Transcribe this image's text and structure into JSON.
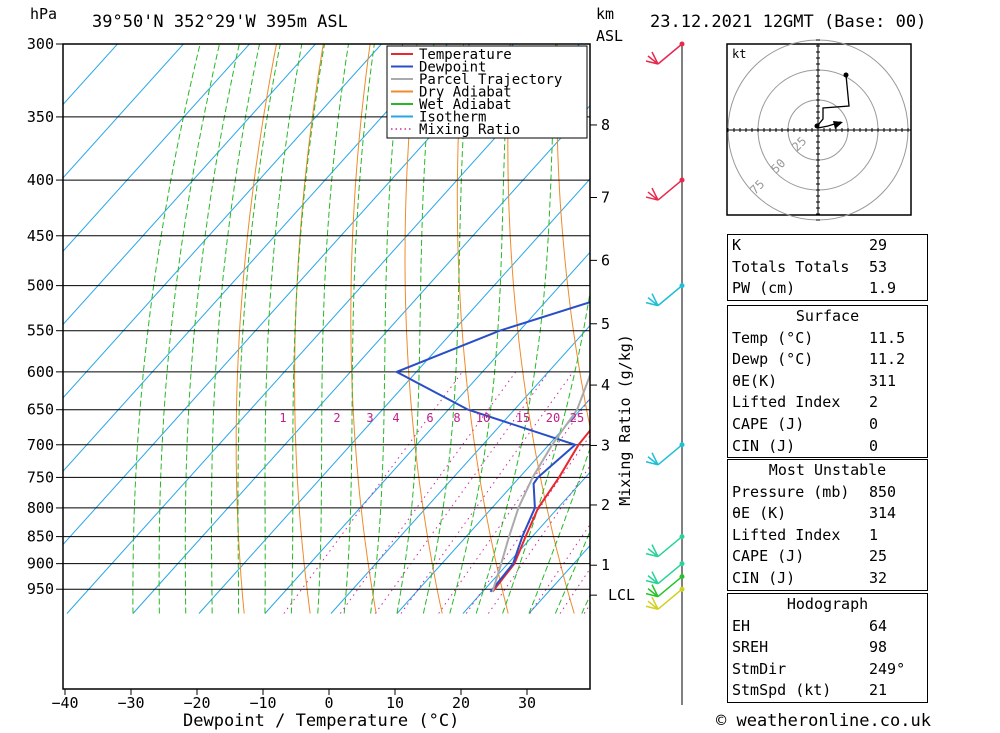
{
  "header": {
    "hpa_unit": "hPa",
    "location": "39°50'N  352°29'W  395m  ASL",
    "km_unit": "km",
    "asl_unit": "ASL",
    "datetime": "23.12.2021  12GMT  (Base: 00)"
  },
  "chart_data": {
    "type": "line",
    "title": "",
    "xlabel": "Dewpoint / Temperature (°C)",
    "ylabel": "hPa",
    "xlim": [
      -40,
      40
    ],
    "ylim": [
      960,
      300
    ],
    "x_ticks": [
      -40,
      -30,
      -20,
      -10,
      0,
      10,
      20,
      30
    ],
    "pressure_levels": [
      300,
      350,
      400,
      450,
      500,
      550,
      600,
      650,
      700,
      750,
      800,
      850,
      900,
      950
    ],
    "height_ticks_km": [
      {
        "label": "8",
        "p": 356
      },
      {
        "label": "7",
        "p": 415
      },
      {
        "label": "6",
        "p": 474
      },
      {
        "label": "5",
        "p": 542
      },
      {
        "label": "4",
        "p": 617
      },
      {
        "label": "3",
        "p": 701
      },
      {
        "label": "2",
        "p": 795
      },
      {
        "label": "1",
        "p": 903
      },
      {
        "label": "LCL",
        "p": 962
      }
    ],
    "mixing_ratio_axis_label": "Mixing Ratio (g/kg)",
    "mixing_ratio_labels": [
      "1",
      "2",
      "3",
      "4",
      "6",
      "8",
      "10",
      "15",
      "20",
      "25"
    ],
    "mixing_ratio_values": [
      1,
      2,
      3,
      4,
      6,
      8,
      10,
      15,
      20,
      25
    ],
    "legend": [
      "Temperature",
      "Dewpoint",
      "Parcel Trajectory",
      "Dry Adiabat",
      "Wet Adiabat",
      "Isotherm",
      "Mixing Ratio"
    ],
    "legend_position": "top-right",
    "series": [
      {
        "name": "Temperature",
        "color": "#e8282d",
        "points": [
          [
            955,
            11.5
          ],
          [
            900,
            11.0
          ],
          [
            850,
            9.0
          ],
          [
            800,
            7.0
          ],
          [
            750,
            6.0
          ],
          [
            700,
            4.5
          ],
          [
            650,
            4.0
          ],
          [
            600,
            1.0
          ],
          [
            550,
            -2.0
          ],
          [
            500,
            -7.0
          ],
          [
            450,
            -12.5
          ],
          [
            400,
            -20.5
          ],
          [
            350,
            -30.0
          ],
          [
            300,
            -40.0
          ]
        ]
      },
      {
        "name": "Dewpoint",
        "color": "#2a4ec8",
        "points": [
          [
            955,
            11.2
          ],
          [
            900,
            10.8
          ],
          [
            850,
            8.5
          ],
          [
            800,
            6.5
          ],
          [
            760,
            3.0
          ],
          [
            750,
            2.8
          ],
          [
            700,
            4.0
          ],
          [
            650,
            -17.0
          ],
          [
            600,
            -33.0
          ],
          [
            550,
            -23.0
          ],
          [
            500,
            -7.5
          ],
          [
            450,
            -12.5
          ],
          [
            400,
            -20.5
          ],
          [
            350,
            -30.0
          ],
          [
            300,
            -40.0
          ]
        ]
      },
      {
        "name": "Parcel Trajectory",
        "color": "#aaaaaa",
        "points": [
          [
            955,
            11.5
          ],
          [
            900,
            9.0
          ],
          [
            850,
            6.5
          ],
          [
            800,
            4.0
          ],
          [
            750,
            2.0
          ],
          [
            700,
            0.5
          ],
          [
            650,
            -0.5
          ],
          [
            600,
            -3.5
          ],
          [
            550,
            -7.5
          ],
          [
            500,
            -13.0
          ],
          [
            450,
            -19.5
          ],
          [
            400,
            -27.5
          ],
          [
            350,
            -36.0
          ],
          [
            315,
            -42.5
          ]
        ]
      }
    ],
    "wind_barbs": [
      {
        "p": 300,
        "color": "#e8284d"
      },
      {
        "p": 400,
        "color": "#e8284d"
      },
      {
        "p": 500,
        "color": "#1fbfd6"
      },
      {
        "p": 700,
        "color": "#1fbfd6"
      },
      {
        "p": 850,
        "color": "#2ad29a"
      },
      {
        "p": 900,
        "color": "#2ad29a"
      },
      {
        "p": 925,
        "color": "#26c42a"
      },
      {
        "p": 950,
        "color": "#d0d020"
      }
    ]
  },
  "hodograph": {
    "unit": "kt",
    "ring_labels": [
      "25",
      "50",
      "75"
    ]
  },
  "indices": {
    "group1": [
      {
        "label": "K",
        "value": "29"
      },
      {
        "label": "Totals Totals",
        "value": "53"
      },
      {
        "label": "PW (cm)",
        "value": "1.9"
      }
    ],
    "surface": {
      "title": "Surface",
      "rows": [
        {
          "label": "Temp (°C)",
          "value": "11.5"
        },
        {
          "label": "Dewp (°C)",
          "value": "11.2"
        },
        {
          "label": "θE(K)",
          "value": "311"
        },
        {
          "label": "Lifted Index",
          "value": "2"
        },
        {
          "label": "CAPE (J)",
          "value": "0"
        },
        {
          "label": "CIN (J)",
          "value": "0"
        }
      ]
    },
    "most_unstable": {
      "title": "Most Unstable",
      "rows": [
        {
          "label": "Pressure (mb)",
          "value": "850"
        },
        {
          "label": "θE (K)",
          "value": "314"
        },
        {
          "label": "Lifted Index",
          "value": "1"
        },
        {
          "label": "CAPE (J)",
          "value": "25"
        },
        {
          "label": "CIN (J)",
          "value": "32"
        }
      ]
    },
    "hodograph_box": {
      "title": "Hodograph",
      "rows": [
        {
          "label": "EH",
          "value": "64"
        },
        {
          "label": "SREH",
          "value": "98"
        },
        {
          "label": "StmDir",
          "value": "249°"
        },
        {
          "label": "StmSpd (kt)",
          "value": "21"
        }
      ]
    }
  },
  "footer": {
    "copyright": "© weatheronline.co.uk"
  }
}
